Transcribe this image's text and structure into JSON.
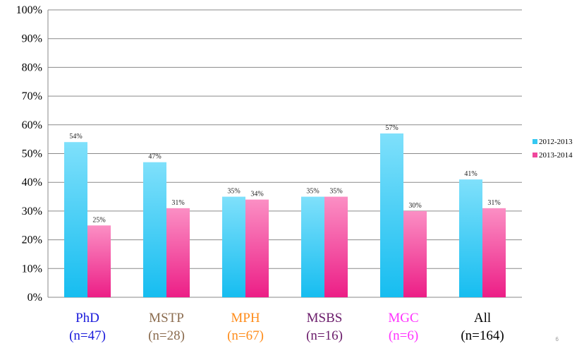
{
  "chart_data": {
    "type": "bar",
    "categories": [
      "PhD",
      "MSTP",
      "MPH",
      "MSBS",
      "MGC",
      "All"
    ],
    "category_sublabels": [
      "(n=47)",
      "(n=28)",
      "(n=67)",
      "(n=16)",
      "(n=6)",
      "(n=164)"
    ],
    "category_colors": [
      "#1a1adb",
      "#8b6c4f",
      "#ff8c1a",
      "#6a1b6a",
      "#ff33ff",
      "#000000"
    ],
    "series": [
      {
        "name": "2012-2013",
        "values": [
          54,
          47,
          35,
          35,
          57,
          41
        ],
        "labels": [
          "54%",
          "47%",
          "35%",
          "35%",
          "57%",
          "41%"
        ],
        "color": "#35c8f2"
      },
      {
        "name": "2013-2014",
        "values": [
          25,
          31,
          34,
          35,
          30,
          31
        ],
        "labels": [
          "25%",
          "31%",
          "34%",
          "35%",
          "30%",
          "31%"
        ],
        "color": "#f0479c"
      }
    ],
    "ylim": [
      0,
      100
    ],
    "yticks": [
      "0%",
      "10%",
      "20%",
      "30%",
      "40%",
      "50%",
      "60%",
      "70%",
      "80%",
      "90%",
      "100%"
    ],
    "grid": true,
    "legend_position": "right"
  },
  "page_number": "6"
}
